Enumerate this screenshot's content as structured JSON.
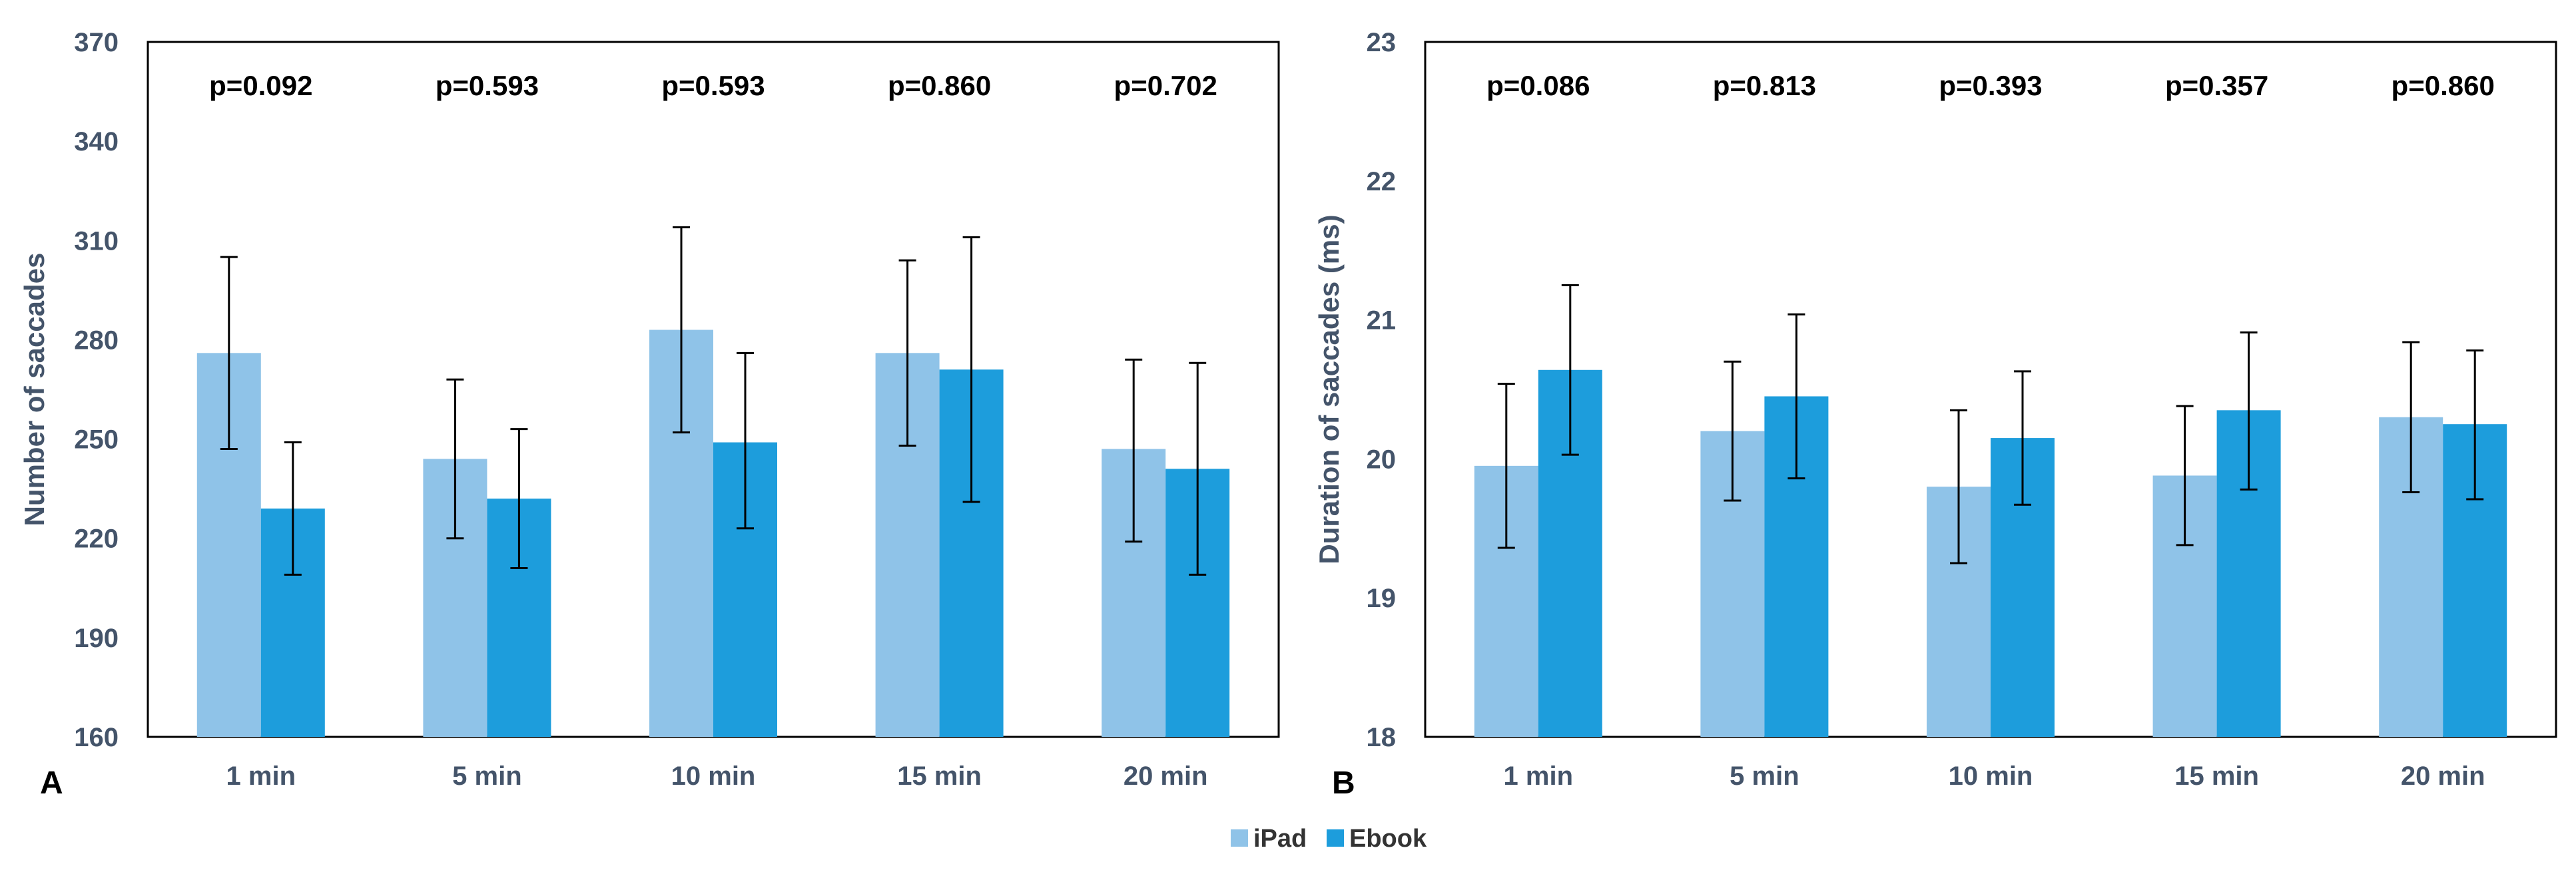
{
  "colors": {
    "ipad": "#8FC3E8",
    "ebook": "#1D9DDC",
    "axis": "#44546A"
  },
  "legend": [
    {
      "name": "iPad",
      "color": "#8FC3E8"
    },
    {
      "name": "Ebook",
      "color": "#1D9DDC"
    }
  ],
  "chart_data": [
    {
      "type": "bar",
      "panel_label": "A",
      "categories": [
        "1 min",
        "5 min",
        "10 min",
        "15 min",
        "20 min"
      ],
      "ylabel": "Number of saccades",
      "xlabel": "",
      "ylim": [
        160,
        370
      ],
      "yticks": [
        160,
        190,
        220,
        250,
        280,
        310,
        340,
        370
      ],
      "p_values": [
        "p=0.092",
        "p=0.593",
        "p=0.593",
        "p=0.860",
        "p=0.702"
      ],
      "series": [
        {
          "name": "iPad",
          "values": [
            276,
            244,
            283,
            276,
            247
          ],
          "err_low": [
            247,
            220,
            252,
            248,
            219
          ],
          "err_high": [
            305,
            268,
            314,
            304,
            274
          ]
        },
        {
          "name": "Ebook",
          "values": [
            229,
            232,
            249,
            271,
            241
          ],
          "err_low": [
            209,
            211,
            223,
            231,
            209
          ],
          "err_high": [
            249,
            253,
            276,
            311,
            273
          ]
        }
      ]
    },
    {
      "type": "bar",
      "panel_label": "B",
      "categories": [
        "1 min",
        "5 min",
        "10 min",
        "15 min",
        "20 min"
      ],
      "ylabel": "Duration of saccades (ms)",
      "xlabel": "",
      "ylim": [
        18,
        23
      ],
      "yticks": [
        18,
        19,
        20,
        21,
        22,
        23
      ],
      "p_values": [
        "p=0.086",
        "p=0.813",
        "p=0.393",
        "p=0.357",
        "p=0.860"
      ],
      "series": [
        {
          "name": "iPad",
          "values": [
            19.95,
            20.2,
            19.8,
            19.88,
            20.3
          ],
          "err_low": [
            19.36,
            19.7,
            19.25,
            19.38,
            19.76
          ],
          "err_high": [
            20.54,
            20.7,
            20.35,
            20.38,
            20.84
          ]
        },
        {
          "name": "Ebook",
          "values": [
            20.64,
            20.45,
            20.15,
            20.35,
            20.25
          ],
          "err_low": [
            20.03,
            19.86,
            19.67,
            19.78,
            19.71
          ],
          "err_high": [
            21.25,
            21.04,
            20.63,
            20.91,
            20.78
          ]
        }
      ]
    }
  ]
}
